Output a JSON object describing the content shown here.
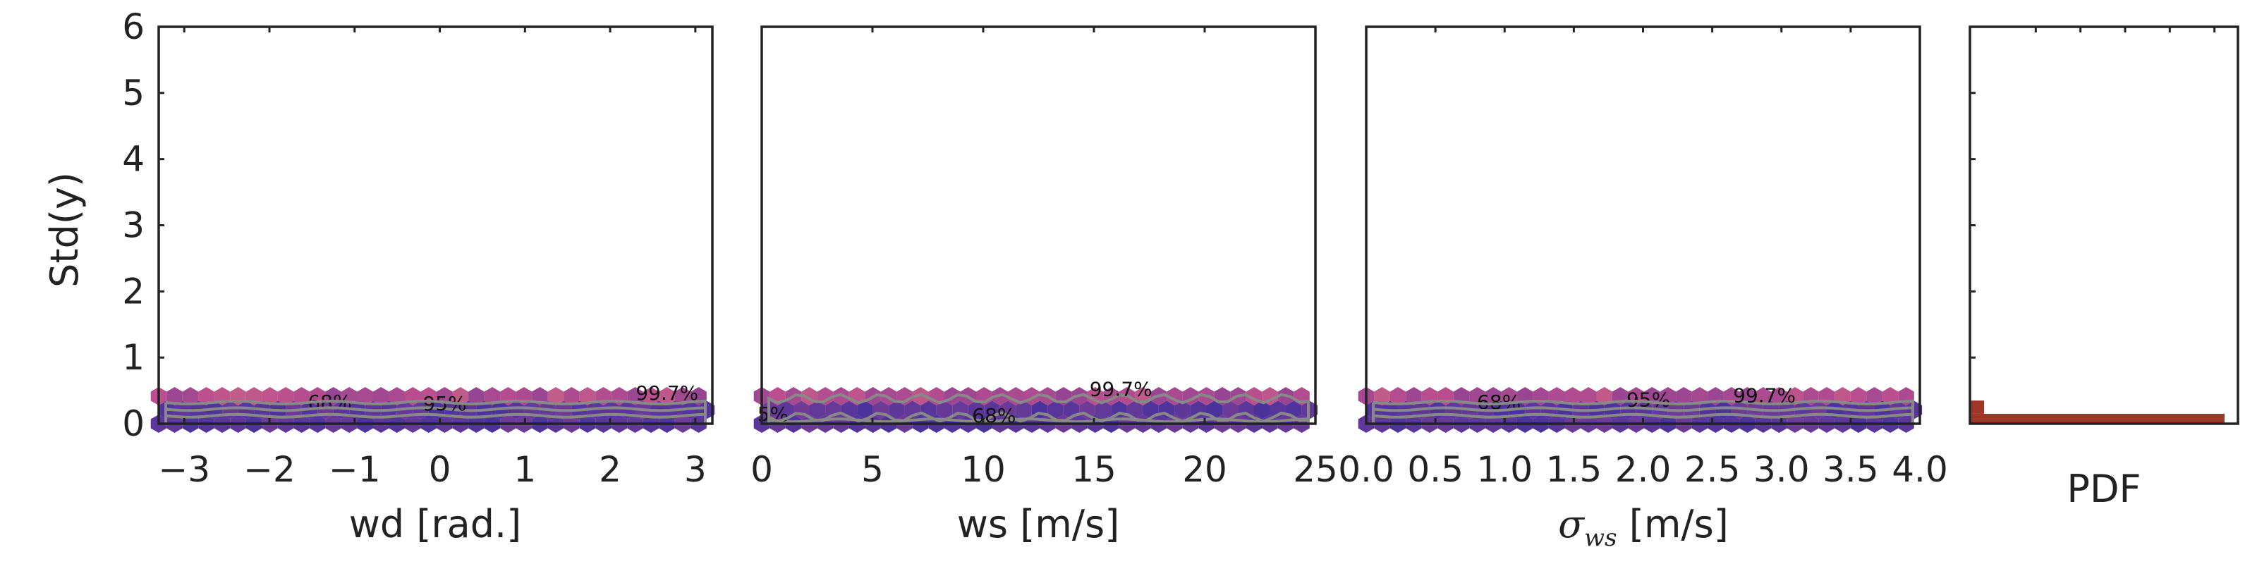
{
  "chart_data": [
    {
      "type": "hexbin",
      "panel": "wd",
      "xlabel": "wd [rad.]",
      "ylabel": "Std(y)",
      "xlim": [
        -3.3,
        3.2
      ],
      "ylim": [
        0,
        6
      ],
      "xticks": [
        -3,
        -2,
        -1,
        0,
        1,
        2,
        3
      ],
      "xtick_labels": [
        "−3",
        "−2",
        "−1",
        "0",
        "1",
        "2",
        "3"
      ],
      "yticks": [
        0,
        1,
        2,
        3,
        4,
        5,
        6
      ],
      "ytick_labels": [
        "0",
        "1",
        "2",
        "3",
        "4",
        "5",
        "6"
      ],
      "y_range_of_points": [
        0,
        0.55
      ],
      "contours": [
        {
          "label": "68%",
          "level": 0.12,
          "label_x": -1.55,
          "label_y": 0.18
        },
        {
          "label": "95%",
          "level": 0.22,
          "label_x": -0.2,
          "label_y": 0.16
        },
        {
          "label": "99.7%",
          "level": 0.32,
          "label_x": 2.3,
          "label_y": 0.32
        }
      ]
    },
    {
      "type": "hexbin",
      "panel": "ws",
      "xlabel": "ws [m/s]",
      "xlim": [
        0,
        25
      ],
      "ylim": [
        0,
        6
      ],
      "xticks": [
        0,
        5,
        10,
        15,
        20,
        25
      ],
      "xtick_labels": [
        "0",
        "5",
        "10",
        "15",
        "20",
        "25"
      ],
      "y_range_of_points": [
        0,
        0.55
      ],
      "contours": [
        {
          "label": "5%",
          "level": 0.05,
          "label_x": -0.2,
          "label_y": 0.0
        },
        {
          "label": "68%",
          "level": 0.1,
          "label_x": 9.5,
          "label_y": -0.02
        },
        {
          "label": "99.7%",
          "level": 0.38,
          "label_x": 14.8,
          "label_y": 0.38
        }
      ]
    },
    {
      "type": "hexbin",
      "panel": "sigma_ws",
      "xlabel": "σ",
      "xlabel_sub": "ws",
      "xlabel_unit": " [m/s]",
      "xlim": [
        0,
        4.0
      ],
      "ylim": [
        0,
        6
      ],
      "xticks": [
        0,
        0.5,
        1.0,
        1.5,
        2.0,
        2.5,
        3.0,
        3.5,
        4.0
      ],
      "xtick_labels": [
        "0.0",
        "0.5",
        "1.0",
        "1.5",
        "2.0",
        "2.5",
        "3.0",
        "3.5",
        "4.0"
      ],
      "y_range_of_points": [
        0,
        0.55
      ],
      "contours": [
        {
          "label": "68%",
          "level": 0.12,
          "label_x": 0.8,
          "label_y": 0.18
        },
        {
          "label": "95%",
          "level": 0.22,
          "label_x": 1.88,
          "label_y": 0.22
        },
        {
          "label": "99.7%",
          "level": 0.32,
          "label_x": 2.65,
          "label_y": 0.28
        }
      ]
    },
    {
      "type": "histogram",
      "panel": "pdf",
      "orientation": "horizontal",
      "xlabel": "PDF",
      "ylim": [
        0,
        6
      ],
      "bins": [
        {
          "y0": 0,
          "y1": 0.15,
          "density": 1.0
        },
        {
          "y0": 0.15,
          "y1": 0.35,
          "density": 0.05
        }
      ],
      "bar_color": "#a0352a"
    }
  ],
  "colors": {
    "hexbin_low": "#1a0a8c",
    "hexbin_mid": "#b0307a",
    "hexbin_high": "#f0e040",
    "contour": "#888888",
    "frame": "#222222"
  }
}
